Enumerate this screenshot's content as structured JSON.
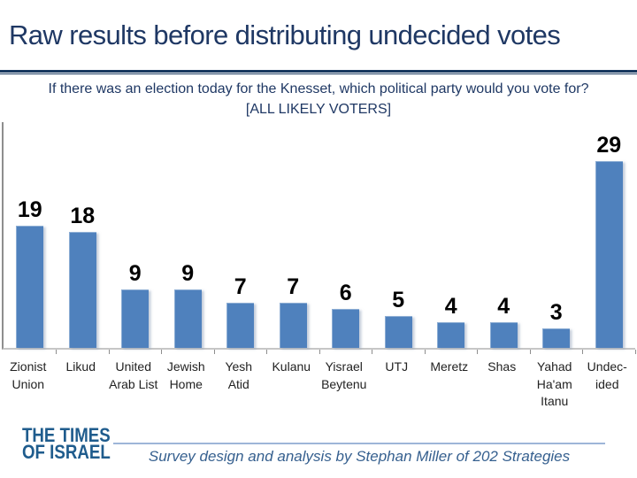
{
  "title": "Raw results before distributing undecided votes",
  "subtitle_line1": "If there was an election today for the Knesset, which political party would you vote for?",
  "subtitle_line2": "[ALL LIKELY VOTERS]",
  "chart_data": {
    "type": "bar",
    "categories": [
      "Zionist\nUnion",
      "Likud",
      "United\nArab List",
      "Jewish\nHome",
      "Yesh\nAtid",
      "Kulanu",
      "Yisrael\nBeytenu",
      "UTJ",
      "Meretz",
      "Shas",
      "Yahad\nHa'am\nItanu",
      "Undec-\nided"
    ],
    "values": [
      19,
      18,
      9,
      9,
      7,
      7,
      6,
      5,
      4,
      4,
      3,
      29
    ],
    "title": "",
    "xlabel": "",
    "ylabel": "",
    "ylim": [
      0,
      35
    ],
    "grid": false,
    "legend": "none",
    "data_labels": true,
    "bar_color": "#4F81BD"
  },
  "colors": {
    "title_text": "#1F3864",
    "bar": "#4F81BD",
    "axis": "#8E8E8E",
    "baseline": "#C6C6C6",
    "logo_blue": "#1F5C8D",
    "footer_rule": "#9EB6D8",
    "credit_text": "#36608F"
  },
  "footer": {
    "logo_line1": "THE TIMES",
    "logo_line2": "OF ISRAEL",
    "credit": "Survey design and analysis by Stephan Miller of 202 Strategies"
  }
}
